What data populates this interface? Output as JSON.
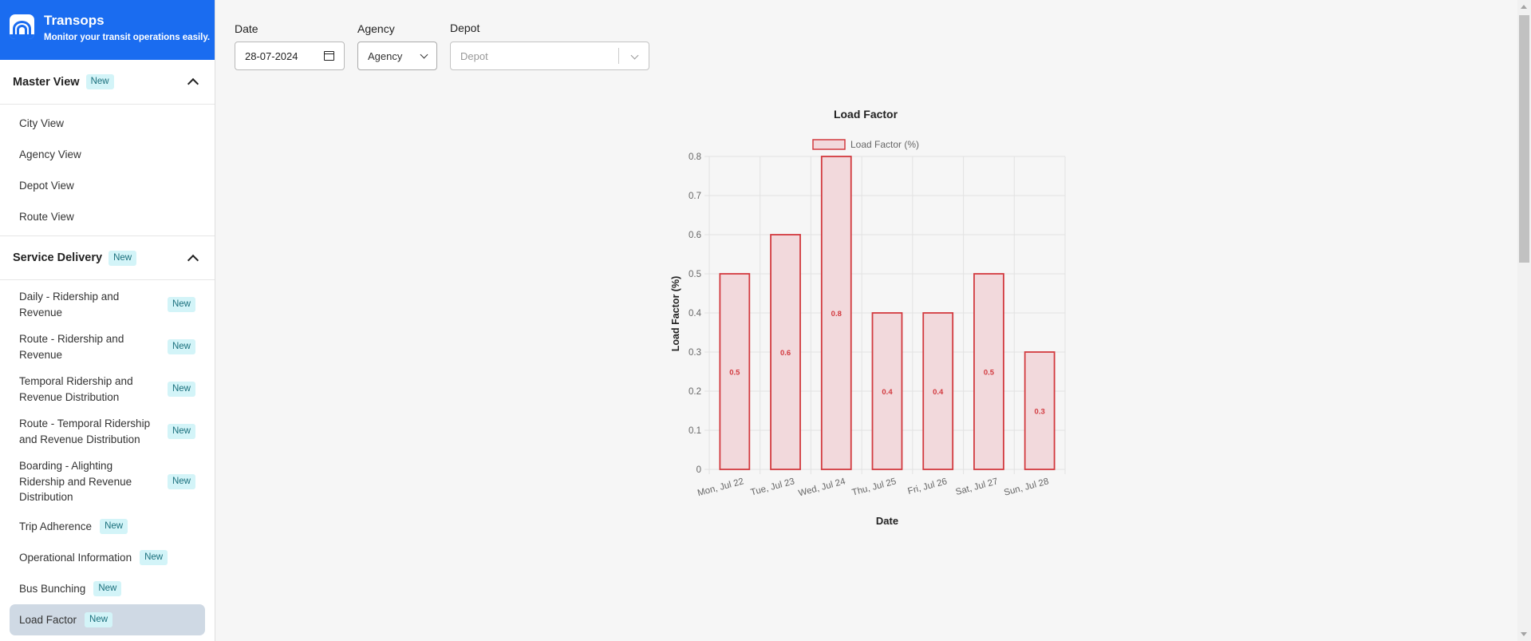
{
  "brand": {
    "title": "Transops",
    "subtitle": "Monitor your transit operations easily."
  },
  "sidebar": {
    "sections": [
      {
        "title": "Master View",
        "badge": "New",
        "items": [
          {
            "label": "City View"
          },
          {
            "label": "Agency View"
          },
          {
            "label": "Depot View"
          },
          {
            "label": "Route View"
          }
        ]
      },
      {
        "title": "Service Delivery",
        "badge": "New",
        "items": [
          {
            "label": "Daily - Ridership and Revenue",
            "badge": "New"
          },
          {
            "label": "Route - Ridership and Revenue",
            "badge": "New"
          },
          {
            "label": "Temporal Ridership and Revenue Distribution",
            "badge": "New"
          },
          {
            "label": "Route - Temporal Ridership and Revenue Distribution",
            "badge": "New"
          },
          {
            "label": "Boarding - Alighting Ridership and Revenue Distribution",
            "badge": "New"
          },
          {
            "label": "Trip Adherence",
            "badge": "New"
          },
          {
            "label": "Operational Information",
            "badge": "New"
          },
          {
            "label": "Bus Bunching",
            "badge": "New"
          },
          {
            "label": "Load Factor",
            "badge": "New",
            "active": true
          }
        ]
      }
    ]
  },
  "filters": {
    "date": {
      "label": "Date",
      "value": "28-07-2024"
    },
    "agency": {
      "label": "Agency",
      "value": "Agency"
    },
    "depot": {
      "label": "Depot",
      "placeholder": "Depot"
    }
  },
  "chart_data": {
    "type": "bar",
    "title": "Load Factor",
    "xlabel": "Date",
    "ylabel": "Load Factor (%)",
    "categories": [
      "Mon, Jul 22",
      "Tue, Jul 23",
      "Wed, Jul 24",
      "Thu, Jul 25",
      "Fri, Jul 26",
      "Sat, Jul 27",
      "Sun, Jul 28"
    ],
    "series": [
      {
        "name": "Load Factor (%)",
        "values": [
          0.5,
          0.6,
          0.8,
          0.4,
          0.4,
          0.5,
          0.3
        ]
      }
    ],
    "data_labels": [
      "0.5",
      "0.6",
      "0.8",
      "0.4",
      "0.4",
      "0.5",
      "0.3"
    ],
    "yticks": [
      "0",
      "0.1",
      "0.2",
      "0.3",
      "0.4",
      "0.5",
      "0.6",
      "0.7",
      "0.8"
    ],
    "ylim": [
      0,
      0.8
    ],
    "grid": true,
    "legend_position": "top",
    "colors": {
      "bar_fill": "#f2d9dc",
      "bar_stroke": "#d23a3f",
      "label": "#d23a3f"
    }
  }
}
